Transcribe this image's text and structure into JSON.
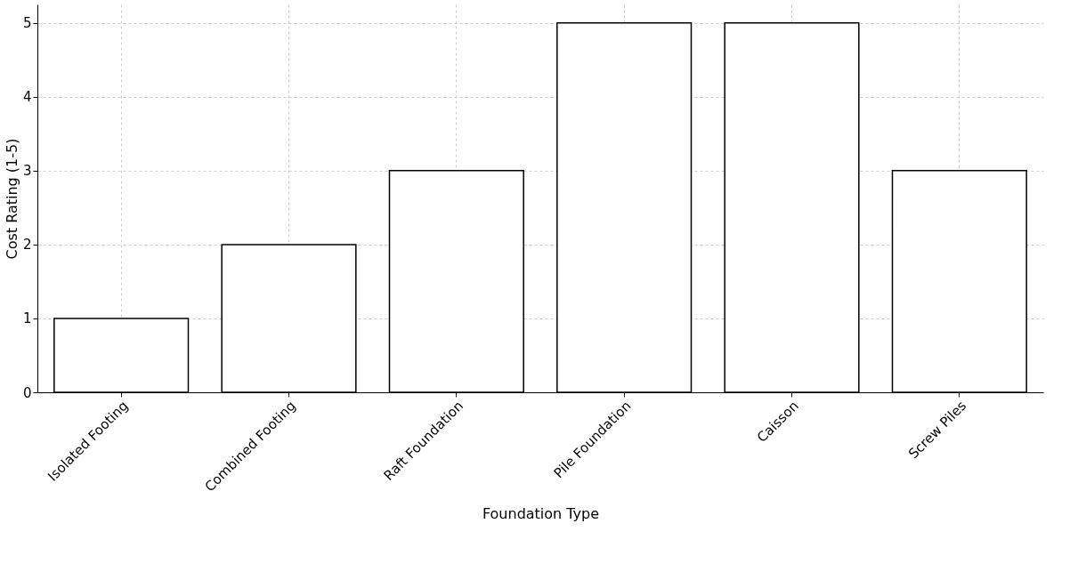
{
  "chart_data": {
    "type": "bar",
    "xlabel": "Foundation Type",
    "ylabel": "Cost Rating (1-5)",
    "categories": [
      "Isolated Footing",
      "Combined Footing",
      "Raft Foundation",
      "Pile Foundation",
      "Caisson",
      "Screw Piles"
    ],
    "values": [
      1,
      2,
      3,
      5,
      5,
      3
    ],
    "color": "#ffffff",
    "ylim": [
      0,
      5.25
    ],
    "yticks": [
      0,
      1,
      2,
      3,
      4,
      5
    ],
    "grid": true
  }
}
